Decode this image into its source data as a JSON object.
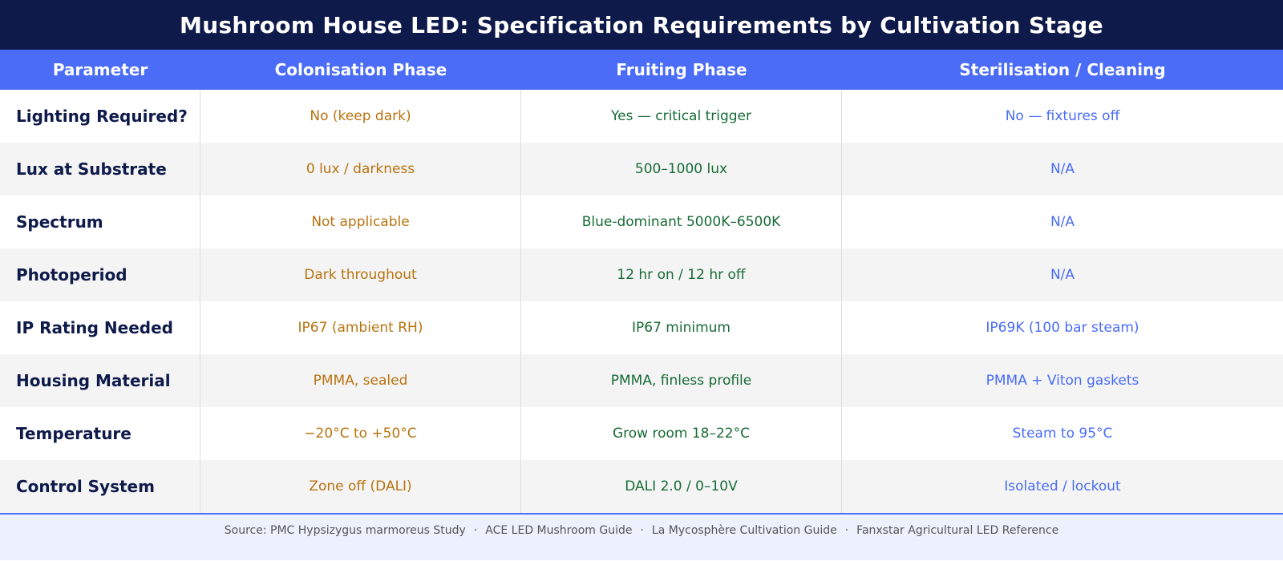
{
  "title": "Mushroom House LED: Specification Requirements by Cultivation Stage",
  "columns": [
    "Parameter",
    "Colonisation Phase",
    "Fruiting Phase",
    "Sterilisation / Cleaning"
  ],
  "rows": [
    {
      "parameter": "Lighting Required?",
      "colonisation": "No (keep dark)",
      "fruiting": "Yes — critical trigger",
      "sterilisation": "No — fixtures off"
    },
    {
      "parameter": "Lux at Substrate",
      "colonisation": "0 lux / darkness",
      "fruiting": "500–1000 lux",
      "sterilisation": "N/A"
    },
    {
      "parameter": "Spectrum",
      "colonisation": "Not applicable",
      "fruiting": "Blue-dominant 5000K–6500K",
      "sterilisation": "N/A"
    },
    {
      "parameter": "Photoperiod",
      "colonisation": "Dark throughout",
      "fruiting": "12 hr on / 12 hr off",
      "sterilisation": "N/A"
    },
    {
      "parameter": "IP Rating Needed",
      "colonisation": "IP67 (ambient RH)",
      "fruiting": "IP67 minimum",
      "sterilisation": "IP69K (100 bar steam)"
    },
    {
      "parameter": "Housing Material",
      "colonisation": "PMMA, sealed",
      "fruiting": "PMMA, finless profile",
      "sterilisation": "PMMA + Viton gaskets"
    },
    {
      "parameter": "Temperature",
      "colonisation": "−20°C to +50°C",
      "fruiting": "Grow room 18–22°C",
      "sterilisation": "Steam to 95°C"
    },
    {
      "parameter": "Control System",
      "colonisation": "Zone off (DALI)",
      "fruiting": "DALI 2.0 / 0–10V",
      "sterilisation": "Isolated / lockout"
    }
  ],
  "sources": [
    "Source: PMC Hypsizygus marmoreus Study",
    "ACE LED Mushroom Guide",
    "La Mycosphère Cultivation Guide",
    "Fanxstar Agricultural LED Reference"
  ],
  "source_separator": "·",
  "colors": {
    "title_bg": "#0e1a4a",
    "header_bg": "#4a6cf7",
    "colonisation_text": "#b8730f",
    "fruiting_text": "#176b35",
    "sterilisation_text": "#4a6cf7",
    "footer_bg": "#edf1fd"
  }
}
